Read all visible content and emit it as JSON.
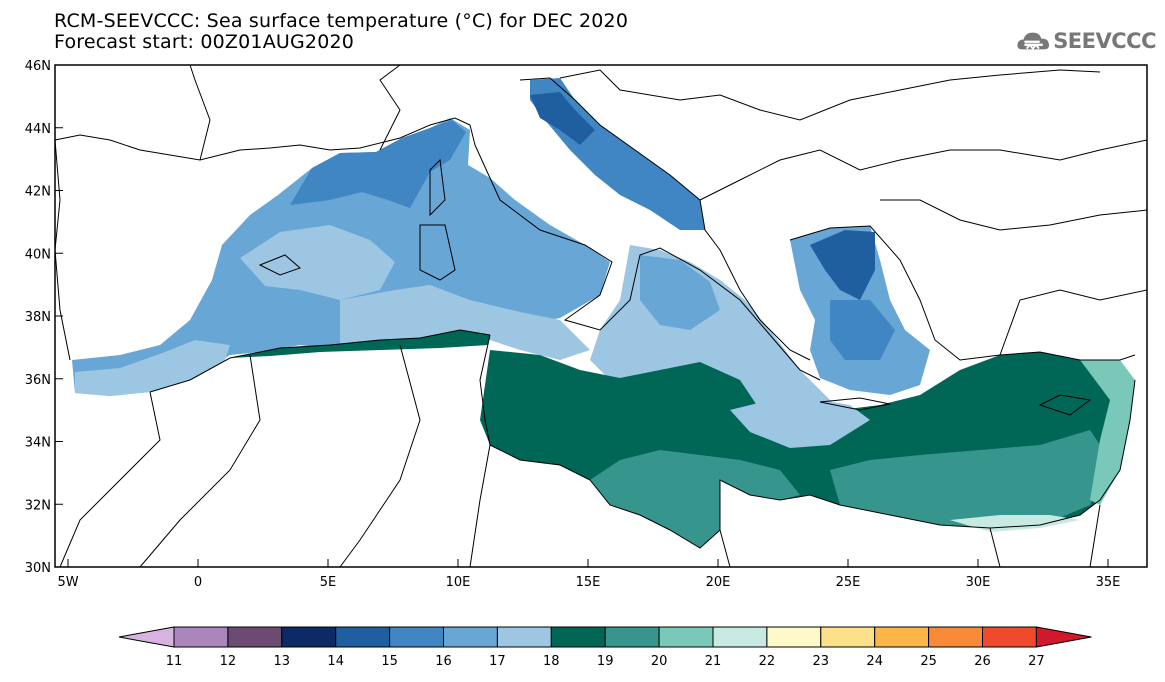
{
  "header": {
    "title": "RCM-SEEVCCC: Sea surface temperature (°C) for DEC 2020",
    "subtitle": "Forecast start: 00Z01AUG2020"
  },
  "logo": {
    "text": "SEEVCCC",
    "icon": "cloud-logo-icon"
  },
  "map": {
    "lon_ticks": [
      "5W",
      "0",
      "5E",
      "10E",
      "15E",
      "20E",
      "25E",
      "30E",
      "35E"
    ],
    "lat_ticks": [
      "46N",
      "44N",
      "42N",
      "40N",
      "38N",
      "36N",
      "34N",
      "32N",
      "30N"
    ],
    "lon_range": [
      -5.5,
      36.5
    ],
    "lat_range": [
      30,
      46
    ]
  },
  "colorbar": {
    "labels": [
      "11",
      "12",
      "13",
      "14",
      "15",
      "16",
      "17",
      "18",
      "19",
      "20",
      "21",
      "22",
      "23",
      "24",
      "25",
      "26",
      "27"
    ],
    "colors": [
      "#d7b4e0",
      "#a987bd",
      "#6b4b72",
      "#0b2a66",
      "#1f5f9f",
      "#3f86c3",
      "#68a6d6",
      "#9cc6e2",
      "#006656",
      "#36968e",
      "#79c8ba",
      "#c7e9e2",
      "#fff8c8",
      "#fde08a",
      "#fbb648",
      "#f88a38",
      "#f04a2c",
      "#d4182c"
    ]
  },
  "colors": {
    "temp_16": "#3f86c3",
    "temp_17": "#68a6d6",
    "temp_18": "#9cc6e2",
    "temp_19": "#006656",
    "temp_20": "#36968e",
    "temp_21": "#79c8ba",
    "temp_22": "#c7e9e2",
    "temp_15": "#1f5f9f"
  }
}
